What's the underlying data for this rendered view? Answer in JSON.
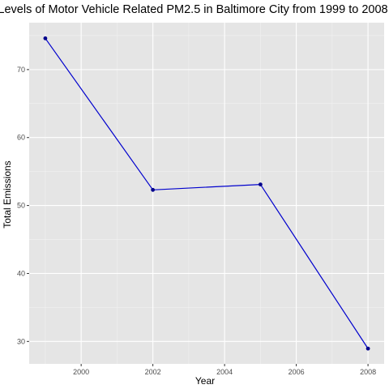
{
  "chart_data": {
    "type": "line",
    "title": "Levels of Motor Vehicle Related PM2.5 in Baltimore City from 1999 to 2008",
    "xlabel": "Year",
    "ylabel": "Total Emissions",
    "x": [
      1999,
      2002,
      2005,
      2008
    ],
    "series": [
      {
        "values": [
          74.6,
          52.3,
          53.1,
          28.95
        ]
      }
    ],
    "xlim": [
      1998.55,
      2008.45
    ],
    "ylim": [
      26.7,
      76.9
    ],
    "x_ticks": [
      2000,
      2002,
      2004,
      2006,
      2008
    ],
    "x_tick_labels": [
      "2000",
      "2002",
      "2004",
      "2006",
      "2008"
    ],
    "y_ticks": [
      30,
      40,
      50,
      60,
      70
    ],
    "y_tick_labels": [
      "30",
      "40",
      "50",
      "60",
      "70"
    ],
    "grid": true,
    "legend": "none",
    "colors": {
      "panel_background": "#e5e5e5",
      "grid_major": "#ffffff",
      "grid_minor": "#f2f2f2",
      "line": "#0000cd",
      "point": "#00008b",
      "tick_label": "#4d4d4d",
      "axis_title": "#000000"
    }
  }
}
